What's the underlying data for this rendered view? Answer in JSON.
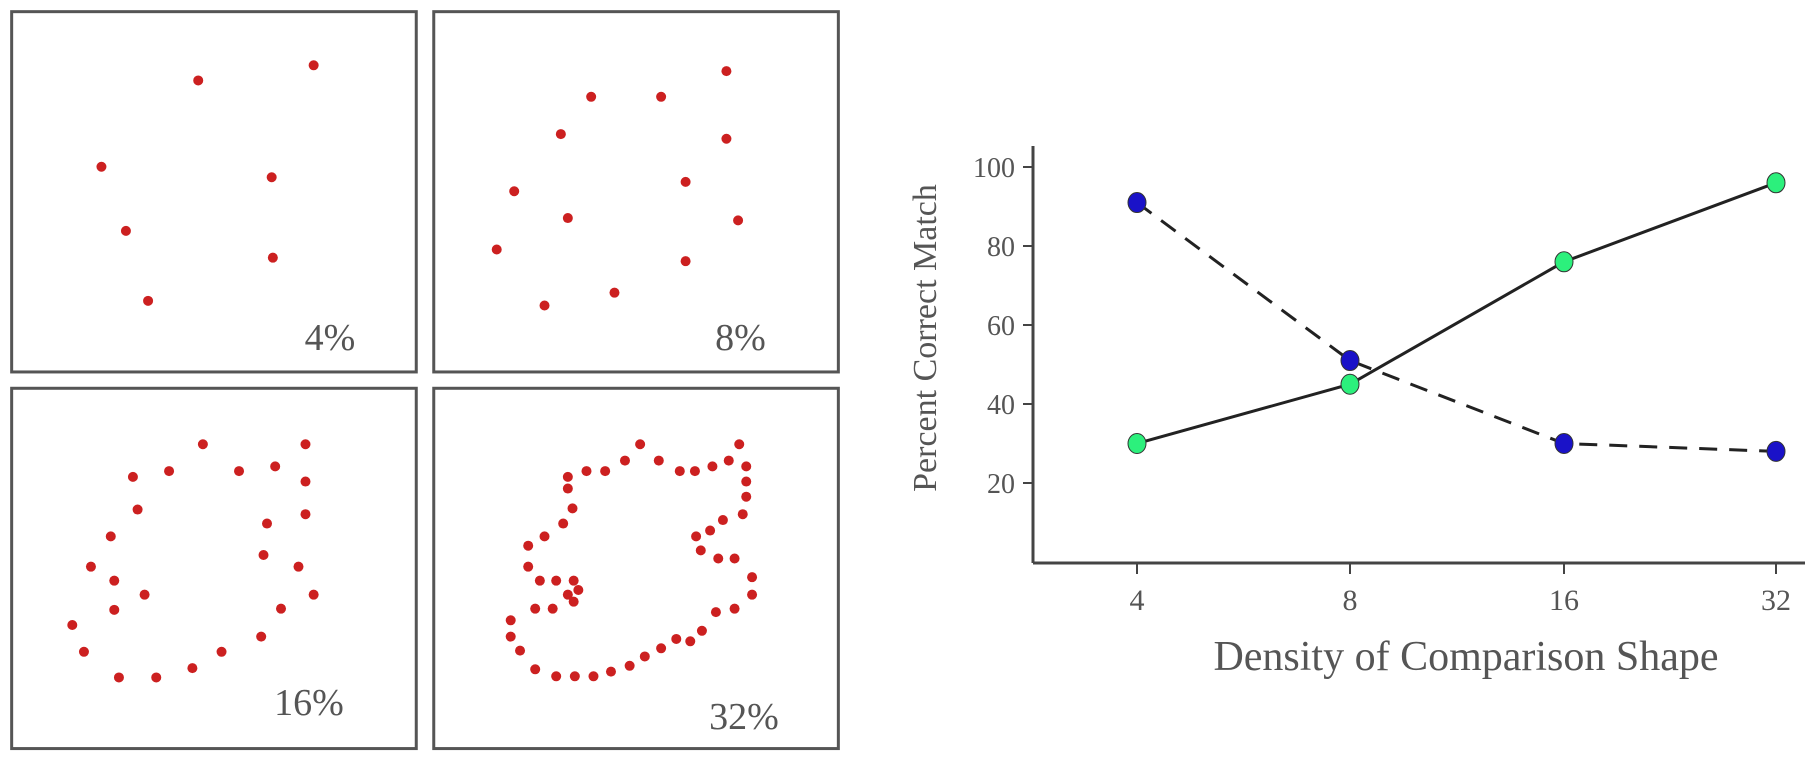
{
  "panels": [
    {
      "label": "4%"
    },
    {
      "label": "8%"
    },
    {
      "label": "16%"
    },
    {
      "label": "32%"
    }
  ],
  "colors": {
    "dots": "#cc2020",
    "series_dashed": "#1a12c8",
    "series_solid": "#2cf07c",
    "frame": "#555555"
  },
  "chart_data": {
    "type": "line",
    "xlabel": "Density of Comparison Shape",
    "ylabel": "Percent Correct Match",
    "categories": [
      "4",
      "8",
      "16",
      "32"
    ],
    "yticks": [
      "20",
      "40",
      "60",
      "80",
      "100"
    ],
    "ylim": [
      0,
      105
    ],
    "grid": false,
    "series": [
      {
        "style": "dashed",
        "marker_color": "#1a12c8",
        "values": [
          91,
          51,
          30,
          28
        ]
      },
      {
        "style": "solid",
        "marker_color": "#2cf07c",
        "values": [
          30,
          45,
          76,
          96
        ]
      }
    ]
  }
}
